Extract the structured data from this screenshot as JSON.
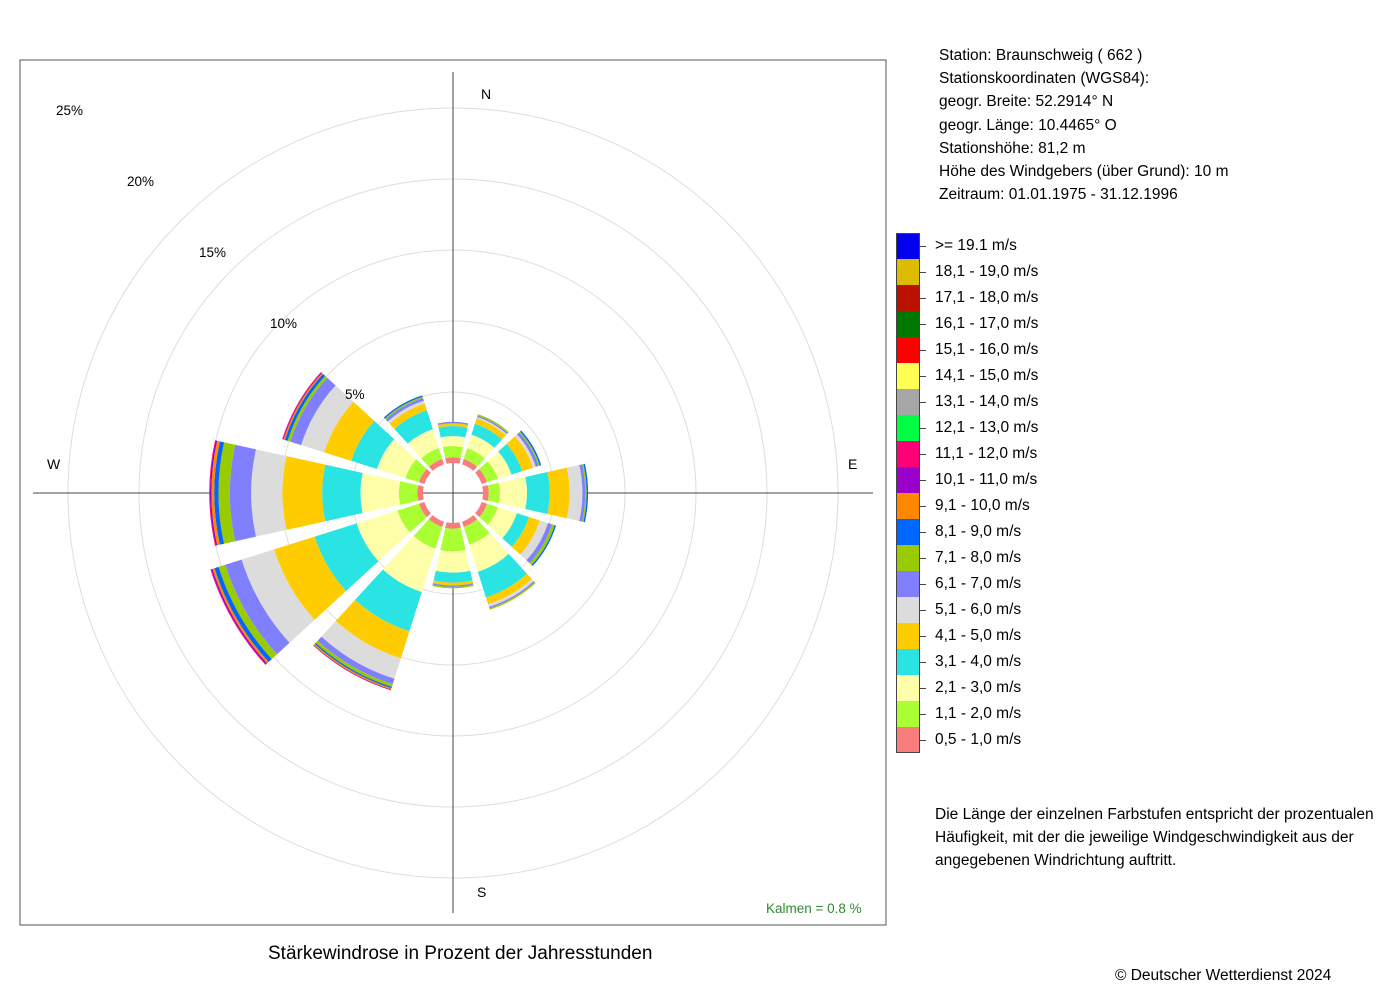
{
  "station": {
    "line1": "Station:  Braunschweig  ( 662 )",
    "line2": "Stationskoordinaten (WGS84):",
    "line3": "geogr. Breite: 52.2914° N",
    "line4": "geogr. Länge: 10.4465° O",
    "line5": "Stationshöhe: 81,2 m",
    "line6": "Höhe des Windgebers (über Grund): 10 m",
    "line7": "Zeitraum: 01.01.1975 - 31.12.1996"
  },
  "note": "Die Länge der einzelnen Farbstufen entspricht der prozentualen Häufigkeit, mit der die jeweilige Windgeschwindigkeit aus der angegebenen Windrichtung auftritt.",
  "caption": "Stärkewindrose in Prozent der Jahresstunden",
  "copyright": "© Deutscher Wetterdienst  2024",
  "chart_data": {
    "type": "wind-rose",
    "title": "Stärkewindrose in Prozent der Jahresstunden",
    "calm_label": "Kalmen  =  0.8 %",
    "calm_percent": 0.8,
    "compass": [
      "N",
      "E",
      "S",
      "W"
    ],
    "ring_labels": [
      "5%",
      "10%",
      "15%",
      "20%",
      "25%"
    ],
    "ring_values": [
      5,
      10,
      15,
      20,
      25
    ],
    "grid": true,
    "directions": [
      0,
      30,
      60,
      90,
      120,
      150,
      180,
      210,
      240,
      270,
      300,
      330
    ],
    "classes": [
      {
        "label": "0,5 - 1,0 m/s",
        "color": "#f97d7d",
        "values": [
          0.4,
          0.4,
          0.4,
          0.4,
          0.4,
          0.4,
          0.4,
          0.4,
          0.4,
          0.4,
          0.4,
          0.4
        ]
      },
      {
        "label": "1,1 - 2,0 m/s",
        "color": "#aaff33",
        "values": [
          0.8,
          0.8,
          0.8,
          0.8,
          0.8,
          1.3,
          1.6,
          1.6,
          1.6,
          1.3,
          1.0,
          0.8
        ]
      },
      {
        "label": "2,1 - 3,0 m/s",
        "color": "#ffffaa",
        "values": [
          0.7,
          1.0,
          1.0,
          1.9,
          1.4,
          2.0,
          1.5,
          3.2,
          3.0,
          2.7,
          2.1,
          1.4
        ]
      },
      {
        "label": "3,1 - 4,0 m/s",
        "color": "#2ae4e4",
        "values": [
          0.7,
          0.8,
          0.8,
          1.6,
          0.9,
          1.9,
          0.7,
          2.9,
          3.1,
          2.7,
          1.9,
          1.4
        ]
      },
      {
        "label": "4,1 - 5,0 m/s",
        "color": "#ffcc00",
        "values": [
          0.2,
          0.4,
          0.8,
          1.4,
          0.8,
          0.5,
          0.2,
          2.0,
          3.0,
          2.8,
          2.0,
          0.5
        ]
      },
      {
        "label": "5,1 - 6,0 m/s",
        "color": "#dcdcdc",
        "values": [
          0.0,
          0.1,
          0.2,
          0.9,
          0.6,
          0.2,
          0.0,
          1.5,
          2.4,
          2.2,
          1.7,
          0.2
        ]
      },
      {
        "label": "6,1 - 7,0 m/s",
        "color": "#8080ff",
        "values": [
          0.1,
          0.1,
          0.2,
          0.2,
          0.3,
          0.1,
          0.1,
          0.4,
          1.2,
          1.5,
          0.8,
          0.2
        ]
      },
      {
        "label": "7,1 - 8,0 m/s",
        "color": "#99cc00",
        "values": [
          0.0,
          0.1,
          0.1,
          0.1,
          0.2,
          0.1,
          0.1,
          0.2,
          0.5,
          0.8,
          0.2,
          0.1
        ]
      },
      {
        "label": "8,1 - 9,0 m/s",
        "color": "#0066ff",
        "values": [
          0.0,
          0.0,
          0.1,
          0.1,
          0.1,
          0.0,
          0.0,
          0.1,
          0.3,
          0.3,
          0.2,
          0.1
        ]
      },
      {
        "label": "9,1 - 10,0 m/s",
        "color": "#ff8800",
        "values": [
          0.0,
          0.0,
          0.0,
          0.0,
          0.0,
          0.0,
          0.0,
          0.1,
          0.15,
          0.2,
          0.1,
          0.0
        ]
      },
      {
        "label": "10,1 - 11,0 m/s",
        "color": "#9900cc",
        "values": [
          0.0,
          0.0,
          0.0,
          0.0,
          0.0,
          0.0,
          0.0,
          0.05,
          0.1,
          0.1,
          0.05,
          0.0
        ]
      },
      {
        "label": "11,1 - 12,0 m/s",
        "color": "#ff0077",
        "values": [
          0.0,
          0.0,
          0.0,
          0.0,
          0.0,
          0.0,
          0.0,
          0.0,
          0.05,
          0.05,
          0.05,
          0.0
        ]
      },
      {
        "label": "12,1 - 13,0 m/s",
        "color": "#00ff44",
        "values": [
          0.0,
          0.0,
          0.0,
          0.0,
          0.0,
          0.0,
          0.0,
          0.0,
          0.0,
          0.0,
          0.0,
          0.0
        ]
      },
      {
        "label": "13,1 - 14,0 m/s",
        "color": "#a6a6a6",
        "values": [
          0.0,
          0.0,
          0.0,
          0.0,
          0.0,
          0.0,
          0.0,
          0.0,
          0.0,
          0.0,
          0.0,
          0.0
        ]
      },
      {
        "label": "14,1 - 15,0 m/s",
        "color": "#ffff55",
        "values": [
          0.0,
          0.0,
          0.0,
          0.0,
          0.0,
          0.0,
          0.0,
          0.0,
          0.0,
          0.0,
          0.0,
          0.0
        ]
      },
      {
        "label": "15,1 - 16,0 m/s",
        "color": "#ff0000",
        "values": [
          0.0,
          0.0,
          0.0,
          0.0,
          0.0,
          0.0,
          0.0,
          0.0,
          0.0,
          0.0,
          0.0,
          0.0
        ]
      },
      {
        "label": "16,1 - 17,0 m/s",
        "color": "#007700",
        "values": [
          0.0,
          0.0,
          0.0,
          0.0,
          0.0,
          0.0,
          0.0,
          0.0,
          0.0,
          0.0,
          0.0,
          0.0
        ]
      },
      {
        "label": "17,1 - 18,0 m/s",
        "color": "#bb1100",
        "values": [
          0.0,
          0.0,
          0.0,
          0.0,
          0.0,
          0.0,
          0.0,
          0.0,
          0.0,
          0.0,
          0.0,
          0.0
        ]
      },
      {
        "label": "18,1 - 19,0 m/s",
        "color": "#ddbb00",
        "values": [
          0.0,
          0.0,
          0.0,
          0.0,
          0.0,
          0.0,
          0.0,
          0.0,
          0.0,
          0.0,
          0.0,
          0.0
        ]
      },
      {
        "label": ">= 19.1 m/s",
        "color": "#0000ee",
        "values": [
          0.0,
          0.0,
          0.0,
          0.0,
          0.0,
          0.0,
          0.0,
          0.0,
          0.0,
          0.0,
          0.0,
          0.0
        ]
      }
    ]
  }
}
